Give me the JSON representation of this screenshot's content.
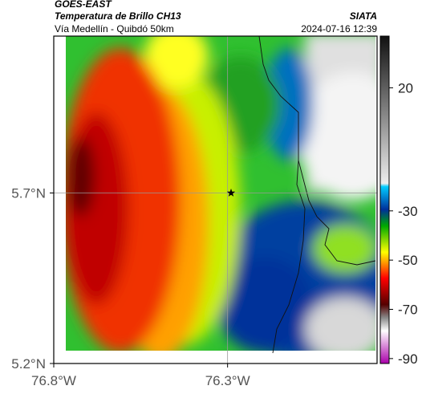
{
  "header": {
    "satellite": "GOES-EAST",
    "title": "Temperatura de Brillo CH13",
    "subtitle": "Vía Medellín - Quibdó 50km",
    "source": "SIATA",
    "timestamp": "2024-07-16 12:39"
  },
  "map": {
    "xlim": [
      -76.8,
      -75.87
    ],
    "ylim": [
      5.2,
      6.16
    ],
    "xticks": [
      {
        "value": -76.8,
        "label": "76.8°W"
      },
      {
        "value": -76.3,
        "label": "76.3°W"
      }
    ],
    "yticks": [
      {
        "value": 5.7,
        "label": "5.7°N"
      },
      {
        "value": 5.2,
        "label": "5.2°N"
      }
    ],
    "marker": {
      "lon": -76.29,
      "lat": 5.7
    }
  },
  "colorbar": {
    "lim": [
      41,
      -92
    ],
    "ticks": [
      20,
      -30,
      -50,
      -70,
      -90
    ]
  }
}
